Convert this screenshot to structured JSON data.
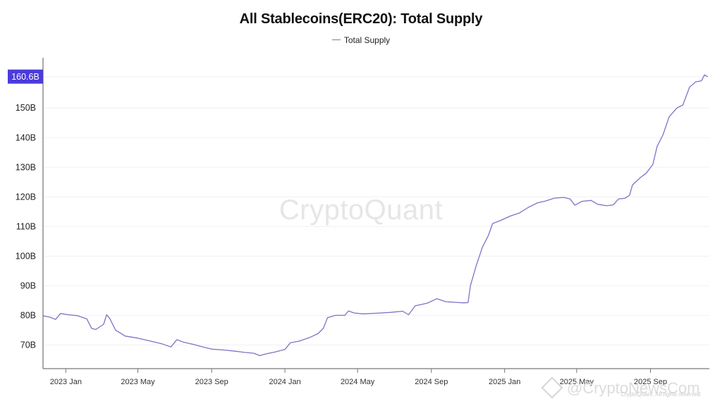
{
  "chart_data": {
    "type": "line",
    "title": "All Stablecoins(ERC20): Total Supply",
    "xlabel": "",
    "ylabel": "",
    "y_ticks": [
      "70B",
      "80B",
      "90B",
      "100B",
      "110B",
      "120B",
      "130B",
      "140B",
      "150B"
    ],
    "y_tick_values": [
      70,
      80,
      90,
      100,
      110,
      120,
      130,
      140,
      150
    ],
    "x_ticks": [
      "2023 Jan",
      "2023 May",
      "2023 Sep",
      "2024 Jan",
      "2024 May",
      "2024 Sep",
      "2025 Jan",
      "2025 May",
      "2025 Sep"
    ],
    "x_tick_dates": [
      "2023-01-01",
      "2023-05-01",
      "2023-09-01",
      "2024-01-01",
      "2024-05-01",
      "2024-09-01",
      "2025-01-01",
      "2025-05-01",
      "2025-09-01"
    ],
    "xlim": [
      "2022-11-24",
      "2025-12-08"
    ],
    "ylim": [
      62,
      166
    ],
    "grid": true,
    "legend_position": "top-center",
    "last_value_label": "160.6B",
    "series": [
      {
        "name": "Total Supply",
        "color": "#7b74c7",
        "values": [
          [
            "2022-11-25",
            79.8
          ],
          [
            "2022-12-05",
            79.4
          ],
          [
            "2022-12-15",
            78.6
          ],
          [
            "2022-12-23",
            80.6
          ],
          [
            "2023-01-05",
            80.2
          ],
          [
            "2023-01-20",
            79.9
          ],
          [
            "2023-02-05",
            78.8
          ],
          [
            "2023-02-13",
            75.6
          ],
          [
            "2023-02-20",
            75.2
          ],
          [
            "2023-03-05",
            77.0
          ],
          [
            "2023-03-10",
            80.2
          ],
          [
            "2023-03-15",
            79.0
          ],
          [
            "2023-03-25",
            75.0
          ],
          [
            "2023-04-10",
            73.0
          ],
          [
            "2023-05-01",
            72.3
          ],
          [
            "2023-05-20",
            71.4
          ],
          [
            "2023-06-10",
            70.4
          ],
          [
            "2023-06-25",
            69.3
          ],
          [
            "2023-07-05",
            71.8
          ],
          [
            "2023-07-15",
            71.0
          ],
          [
            "2023-08-01",
            70.2
          ],
          [
            "2023-08-20",
            69.2
          ],
          [
            "2023-09-01",
            68.6
          ],
          [
            "2023-09-20",
            68.3
          ],
          [
            "2023-10-10",
            67.9
          ],
          [
            "2023-10-25",
            67.5
          ],
          [
            "2023-11-10",
            67.2
          ],
          [
            "2023-11-20",
            66.4
          ],
          [
            "2023-12-01",
            67.0
          ],
          [
            "2023-12-15",
            67.6
          ],
          [
            "2024-01-01",
            68.5
          ],
          [
            "2024-01-10",
            70.7
          ],
          [
            "2024-01-25",
            71.3
          ],
          [
            "2024-02-10",
            72.4
          ],
          [
            "2024-02-25",
            73.8
          ],
          [
            "2024-03-05",
            75.6
          ],
          [
            "2024-03-12",
            79.2
          ],
          [
            "2024-03-25",
            80.0
          ],
          [
            "2024-04-10",
            80.0
          ],
          [
            "2024-04-16",
            81.5
          ],
          [
            "2024-04-25",
            80.8
          ],
          [
            "2024-05-10",
            80.5
          ],
          [
            "2024-06-01",
            80.7
          ],
          [
            "2024-06-25",
            81.0
          ],
          [
            "2024-07-15",
            81.4
          ],
          [
            "2024-07-25",
            80.2
          ],
          [
            "2024-08-05",
            83.2
          ],
          [
            "2024-08-25",
            84.1
          ],
          [
            "2024-09-10",
            85.6
          ],
          [
            "2024-09-25",
            84.6
          ],
          [
            "2024-10-10",
            84.4
          ],
          [
            "2024-10-25",
            84.2
          ],
          [
            "2024-11-01",
            84.3
          ],
          [
            "2024-11-05",
            90.0
          ],
          [
            "2024-11-15",
            97.0
          ],
          [
            "2024-11-25",
            103.0
          ],
          [
            "2024-12-05",
            107.0
          ],
          [
            "2024-12-12",
            111.0
          ],
          [
            "2024-12-25",
            112.0
          ],
          [
            "2025-01-10",
            113.5
          ],
          [
            "2025-01-25",
            114.5
          ],
          [
            "2025-02-10",
            116.5
          ],
          [
            "2025-02-25",
            118.0
          ],
          [
            "2025-03-10",
            118.6
          ],
          [
            "2025-03-25",
            119.6
          ],
          [
            "2025-04-10",
            119.8
          ],
          [
            "2025-04-20",
            119.3
          ],
          [
            "2025-04-28",
            117.2
          ],
          [
            "2025-05-10",
            118.5
          ],
          [
            "2025-05-25",
            118.8
          ],
          [
            "2025-06-05",
            117.5
          ],
          [
            "2025-06-20",
            117.0
          ],
          [
            "2025-07-01",
            117.3
          ],
          [
            "2025-07-10",
            119.3
          ],
          [
            "2025-07-20",
            119.5
          ],
          [
            "2025-07-28",
            120.5
          ],
          [
            "2025-08-02",
            124.0
          ],
          [
            "2025-08-15",
            126.5
          ],
          [
            "2025-08-25",
            128.0
          ],
          [
            "2025-09-05",
            131.0
          ],
          [
            "2025-09-12",
            137.0
          ],
          [
            "2025-09-22",
            141.0
          ],
          [
            "2025-10-02",
            147.0
          ],
          [
            "2025-10-15",
            150.0
          ],
          [
            "2025-10-25",
            151.0
          ],
          [
            "2025-11-05",
            157.0
          ],
          [
            "2025-11-15",
            158.8
          ],
          [
            "2025-11-25",
            159.2
          ],
          [
            "2025-11-30",
            161.2
          ],
          [
            "2025-12-05",
            160.6
          ]
        ]
      }
    ]
  },
  "watermark": "CryptoQuant",
  "credit": "@CryptoNewsCom",
  "rights": "CryptoQuant. All rights reserved"
}
